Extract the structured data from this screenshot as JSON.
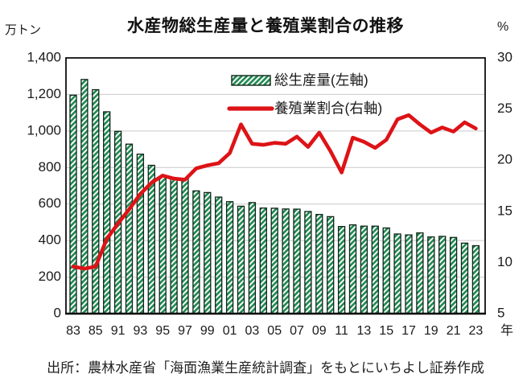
{
  "title": "水産物総生産量と養殖業割合の推移",
  "source": "出所：農林水産省「海面漁業生産統計調査」をもとにいちよし証券作成",
  "colors": {
    "bar_fill": "#238a53",
    "bar_hatch": "#ffffff",
    "bar_border": "#0d2417",
    "line": "#dd1317",
    "grid": "#c9c9c9",
    "frame": "#000000",
    "text": "#1a1a1a",
    "legend_bg": "#ffffff"
  },
  "chart_data": {
    "type": "combo-bar-line",
    "categories": [
      "1983",
      "1984",
      "1985",
      "1990",
      "1991",
      "1992",
      "1993",
      "1994",
      "1995",
      "1996",
      "1997",
      "1998",
      "1999",
      "2000",
      "2001",
      "2002",
      "2003",
      "2004",
      "2005",
      "2006",
      "2007",
      "2008",
      "2009",
      "2010",
      "2011",
      "2012",
      "2013",
      "2014",
      "2015",
      "2016",
      "2017",
      "2018",
      "2019",
      "2020",
      "2021",
      "2022",
      "2023"
    ],
    "x_tick_labels": [
      "83",
      "85",
      "91",
      "93",
      "95",
      "97",
      "99",
      "01",
      "03",
      "05",
      "07",
      "09",
      "11",
      "13",
      "15",
      "17",
      "19",
      "21",
      "23"
    ],
    "x_tick_every": 2,
    "x_axis_suffix": "年",
    "series": [
      {
        "name": "総生産量(左軸)",
        "type": "bar",
        "axis": "left",
        "values": [
          1196,
          1282,
          1226,
          1105,
          998,
          928,
          873,
          812,
          749,
          742,
          741,
          672,
          663,
          638,
          613,
          588,
          608,
          578,
          577,
          573,
          572,
          559,
          543,
          531,
          477,
          486,
          479,
          479,
          469,
          436,
          431,
          442,
          420,
          423,
          417,
          386,
          372
        ]
      },
      {
        "name": "養殖業割合(右軸)",
        "type": "line",
        "axis": "right",
        "values": [
          9.6,
          9.4,
          9.6,
          12.3,
          13.8,
          15.2,
          16.7,
          17.8,
          18.5,
          18.2,
          18.1,
          19.2,
          19.5,
          19.7,
          20.7,
          23.5,
          21.6,
          21.5,
          21.7,
          21.6,
          22.3,
          21.3,
          22.7,
          20.9,
          18.8,
          22.2,
          21.8,
          21.2,
          22.0,
          24.0,
          24.4,
          23.5,
          22.7,
          23.2,
          22.8,
          23.7,
          23.1
        ]
      }
    ],
    "left_axis": {
      "title": "万トン",
      "min": 0,
      "max": 1400,
      "tick_labels": [
        "0",
        "200",
        "400",
        "600",
        "800",
        "1,000",
        "1,200",
        "1,400"
      ]
    },
    "right_axis": {
      "title": "%",
      "min": 5,
      "max": 30,
      "tick_labels": [
        "5",
        "10",
        "15",
        "20",
        "25",
        "30"
      ]
    },
    "legend_position": "top-inside",
    "grid": "horizontal"
  }
}
